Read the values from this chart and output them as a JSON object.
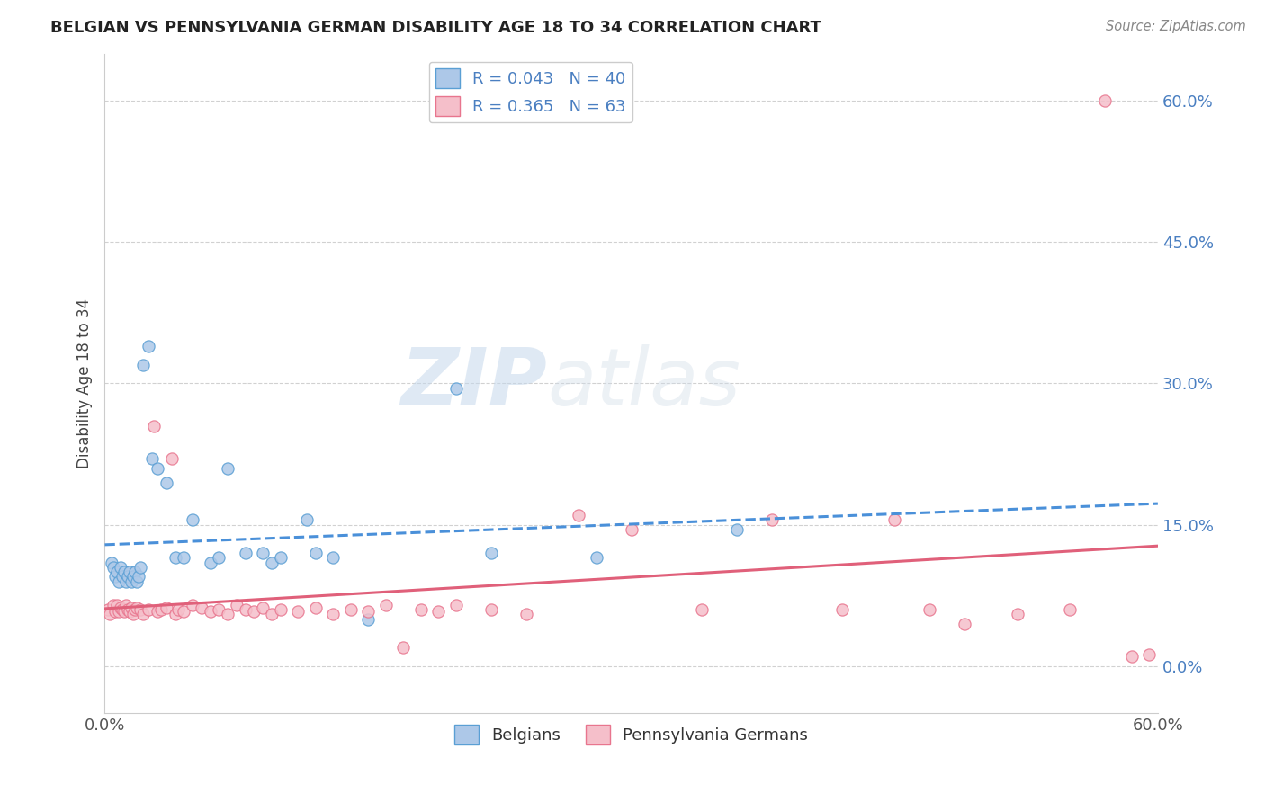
{
  "title": "BELGIAN VS PENNSYLVANIA GERMAN DISABILITY AGE 18 TO 34 CORRELATION CHART",
  "source_text": "Source: ZipAtlas.com",
  "ylabel": "Disability Age 18 to 34",
  "xlim": [
    0.0,
    0.6
  ],
  "ylim": [
    -0.05,
    0.65
  ],
  "ytick_values": [
    0.0,
    0.15,
    0.3,
    0.45,
    0.6
  ],
  "xtick_values": [
    0.0,
    0.1,
    0.2,
    0.3,
    0.4,
    0.5,
    0.6
  ],
  "belgian_color": "#adc8e8",
  "belgian_edge_color": "#5a9fd4",
  "pa_german_color": "#f5bfca",
  "pa_german_edge_color": "#e8758e",
  "belgian_line_color": "#4a90d9",
  "pa_german_line_color": "#e0607a",
  "legend_text_color": "#4a7fc1",
  "belgian_R": 0.043,
  "belgian_N": 40,
  "pa_german_R": 0.365,
  "pa_german_N": 63,
  "background_color": "#ffffff",
  "grid_color": "#cccccc",
  "belgian_x": [
    0.004,
    0.005,
    0.006,
    0.007,
    0.008,
    0.009,
    0.01,
    0.011,
    0.012,
    0.013,
    0.014,
    0.015,
    0.016,
    0.017,
    0.018,
    0.019,
    0.02,
    0.022,
    0.025,
    0.027,
    0.03,
    0.035,
    0.04,
    0.045,
    0.05,
    0.06,
    0.065,
    0.07,
    0.08,
    0.09,
    0.095,
    0.1,
    0.115,
    0.12,
    0.13,
    0.15,
    0.2,
    0.22,
    0.28,
    0.36
  ],
  "belgian_y": [
    0.11,
    0.105,
    0.095,
    0.1,
    0.09,
    0.105,
    0.095,
    0.1,
    0.09,
    0.095,
    0.1,
    0.09,
    0.095,
    0.1,
    0.09,
    0.095,
    0.105,
    0.32,
    0.34,
    0.22,
    0.21,
    0.195,
    0.115,
    0.115,
    0.155,
    0.11,
    0.115,
    0.21,
    0.12,
    0.12,
    0.11,
    0.115,
    0.155,
    0.12,
    0.115,
    0.05,
    0.295,
    0.12,
    0.115,
    0.145
  ],
  "pa_german_x": [
    0.002,
    0.003,
    0.005,
    0.006,
    0.007,
    0.008,
    0.009,
    0.01,
    0.011,
    0.012,
    0.013,
    0.014,
    0.015,
    0.016,
    0.017,
    0.018,
    0.02,
    0.022,
    0.025,
    0.028,
    0.03,
    0.032,
    0.035,
    0.038,
    0.04,
    0.042,
    0.045,
    0.05,
    0.055,
    0.06,
    0.065,
    0.07,
    0.075,
    0.08,
    0.085,
    0.09,
    0.095,
    0.1,
    0.11,
    0.12,
    0.13,
    0.14,
    0.15,
    0.16,
    0.17,
    0.18,
    0.19,
    0.2,
    0.22,
    0.24,
    0.27,
    0.3,
    0.34,
    0.38,
    0.42,
    0.45,
    0.47,
    0.49,
    0.52,
    0.55,
    0.57,
    0.585,
    0.595
  ],
  "pa_german_y": [
    0.06,
    0.055,
    0.065,
    0.058,
    0.065,
    0.058,
    0.062,
    0.06,
    0.058,
    0.065,
    0.06,
    0.058,
    0.062,
    0.055,
    0.06,
    0.062,
    0.06,
    0.055,
    0.06,
    0.255,
    0.058,
    0.06,
    0.062,
    0.22,
    0.055,
    0.06,
    0.058,
    0.065,
    0.062,
    0.058,
    0.06,
    0.055,
    0.065,
    0.06,
    0.058,
    0.062,
    0.055,
    0.06,
    0.058,
    0.062,
    0.055,
    0.06,
    0.058,
    0.065,
    0.02,
    0.06,
    0.058,
    0.065,
    0.06,
    0.055,
    0.16,
    0.145,
    0.06,
    0.155,
    0.06,
    0.155,
    0.06,
    0.045,
    0.055,
    0.06,
    0.6,
    0.01,
    0.012
  ]
}
